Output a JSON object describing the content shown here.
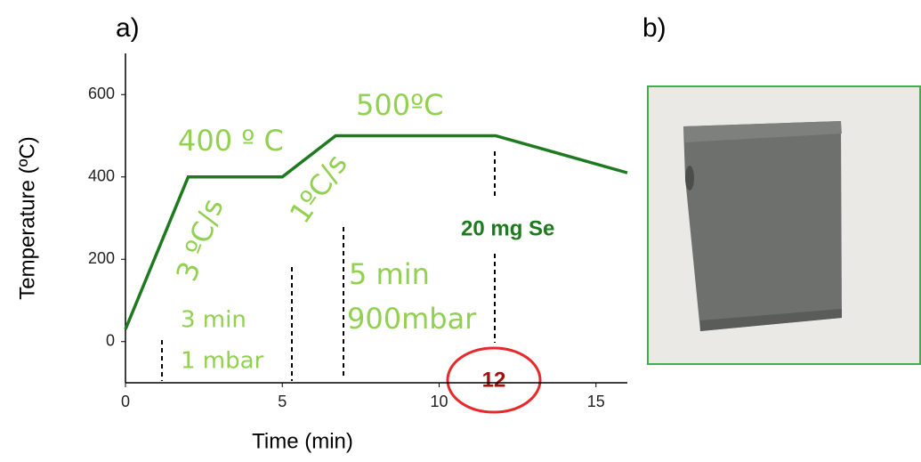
{
  "chart_data": {
    "type": "line",
    "panel_labels": [
      "a)",
      "b)"
    ],
    "xlabel": "Time (min)",
    "ylabel": "Temperature (ºC)",
    "x": [
      0,
      2,
      5,
      6.7,
      11.8,
      16
    ],
    "series": [
      {
        "color": "#1e7a1e",
        "values": [
          30,
          400,
          400,
          500,
          500,
          410
        ]
      }
    ],
    "xlim": [
      0,
      16
    ],
    "xticks": [
      0,
      5,
      10,
      15
    ],
    "ylim": [
      -100,
      700
    ],
    "yticks": [
      0,
      200,
      400,
      600
    ],
    "annotations": [
      "400 º C",
      "500ºC",
      "3 ºC/s",
      "1ºC/s",
      "3 min",
      "1 mbar",
      "5 min",
      "900mbar",
      "20 mg Se",
      "12"
    ]
  }
}
